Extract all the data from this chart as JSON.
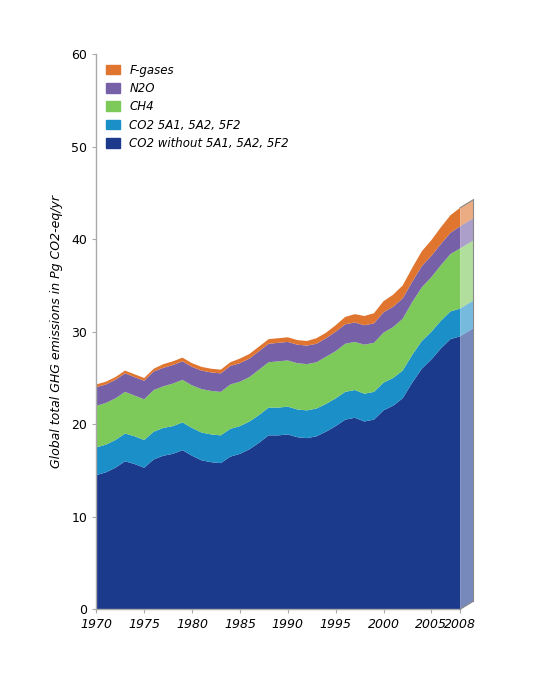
{
  "years": [
    1970,
    1971,
    1972,
    1973,
    1974,
    1975,
    1976,
    1977,
    1978,
    1979,
    1980,
    1981,
    1982,
    1983,
    1984,
    1985,
    1986,
    1987,
    1988,
    1989,
    1990,
    1991,
    1992,
    1993,
    1994,
    1995,
    1996,
    1997,
    1998,
    1999,
    2000,
    2001,
    2002,
    2003,
    2004,
    2005,
    2006,
    2007,
    2008
  ],
  "co2_main": [
    14.5,
    14.8,
    15.3,
    16.0,
    15.7,
    15.3,
    16.2,
    16.6,
    16.8,
    17.2,
    16.6,
    16.1,
    15.9,
    15.8,
    16.5,
    16.8,
    17.3,
    18.0,
    18.8,
    18.8,
    18.9,
    18.6,
    18.5,
    18.7,
    19.2,
    19.8,
    20.5,
    20.7,
    20.3,
    20.5,
    21.5,
    22.0,
    22.8,
    24.5,
    26.0,
    27.0,
    28.2,
    29.2,
    29.5
  ],
  "co2_land": [
    3.0,
    3.0,
    3.0,
    3.0,
    3.0,
    3.0,
    3.0,
    3.0,
    3.0,
    3.0,
    3.0,
    3.0,
    3.0,
    3.0,
    3.0,
    3.0,
    3.0,
    3.0,
    3.0,
    3.0,
    3.0,
    3.0,
    3.0,
    3.0,
    3.0,
    3.0,
    3.0,
    3.0,
    3.0,
    3.0,
    3.0,
    3.0,
    3.0,
    3.0,
    3.0,
    3.0,
    3.0,
    3.0,
    3.0
  ],
  "ch4": [
    4.5,
    4.5,
    4.5,
    4.5,
    4.4,
    4.4,
    4.5,
    4.5,
    4.6,
    4.6,
    4.6,
    4.7,
    4.7,
    4.7,
    4.8,
    4.8,
    4.8,
    4.9,
    4.9,
    5.0,
    5.0,
    5.0,
    5.0,
    5.0,
    5.1,
    5.1,
    5.2,
    5.2,
    5.3,
    5.3,
    5.4,
    5.5,
    5.6,
    5.7,
    5.8,
    5.9,
    6.0,
    6.2,
    6.5
  ],
  "n2o": [
    2.0,
    2.0,
    2.0,
    2.0,
    2.0,
    2.0,
    2.0,
    2.0,
    2.0,
    2.0,
    2.0,
    2.0,
    2.0,
    2.0,
    2.0,
    2.0,
    2.0,
    2.0,
    2.0,
    2.0,
    2.0,
    2.0,
    2.0,
    2.0,
    2.0,
    2.1,
    2.1,
    2.1,
    2.1,
    2.1,
    2.2,
    2.2,
    2.2,
    2.2,
    2.3,
    2.3,
    2.3,
    2.3,
    2.4
  ],
  "fgas": [
    0.3,
    0.3,
    0.3,
    0.3,
    0.3,
    0.3,
    0.3,
    0.4,
    0.4,
    0.4,
    0.4,
    0.4,
    0.4,
    0.4,
    0.4,
    0.5,
    0.5,
    0.5,
    0.5,
    0.5,
    0.5,
    0.5,
    0.5,
    0.6,
    0.6,
    0.7,
    0.8,
    0.9,
    1.0,
    1.1,
    1.2,
    1.3,
    1.4,
    1.5,
    1.6,
    1.7,
    1.8,
    1.9,
    2.0
  ],
  "colors": {
    "co2_main": "#1B3A8C",
    "co2_land": "#1B8FC8",
    "ch4": "#7DC95A",
    "n2o": "#7660A8",
    "fgas": "#E07530"
  },
  "legend_labels": [
    "F-gases",
    "N2O",
    "CH4",
    "CO2 5A1, 5A2, 5F2",
    "CO2 without 5A1, 5A2, 5F2"
  ],
  "ylabel": "Global total GHG emissions in Pg CO2-eq/yr",
  "ylim": [
    0,
    60
  ],
  "yticks": [
    0,
    10,
    20,
    30,
    40,
    50,
    60
  ],
  "xticks": [
    1970,
    1975,
    1980,
    1985,
    1990,
    1995,
    2000,
    2005,
    2008
  ],
  "bg_color": "#FFFFFF",
  "wall_color": "#DDEEFF",
  "wall_right_color": "#C5D8EE"
}
